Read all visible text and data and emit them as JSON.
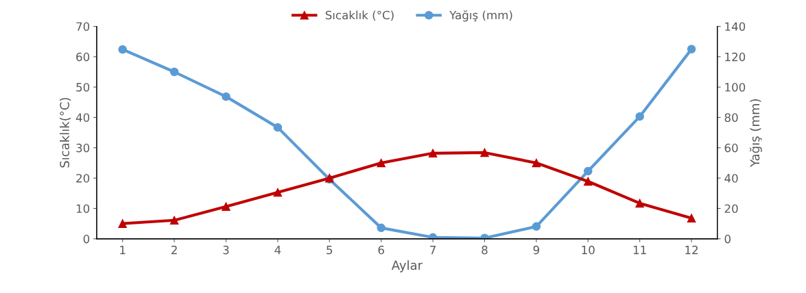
{
  "chart_data": {
    "type": "line",
    "xlabel": "Aylar",
    "ylabel": "Sıcaklık(°C)",
    "y2label": "Yağış (mm)",
    "categories": [
      "1",
      "2",
      "3",
      "4",
      "5",
      "6",
      "7",
      "8",
      "9",
      "10",
      "11",
      "12"
    ],
    "series": [
      {
        "name": "Sıcaklık (°C)",
        "color": "#c00000",
        "marker": "triangle",
        "values": [
          5,
          6.1,
          10.6,
          15.3,
          20,
          25,
          28.2,
          28.4,
          25,
          18.9,
          11.7,
          6.8
        ]
      },
      {
        "name": "Yağış (mm)",
        "color": "#5b9bd5",
        "marker": "circle",
        "axis": "y2",
        "values": [
          124.8,
          110,
          93.7,
          73.4,
          39.2,
          7.2,
          0.9,
          0.5,
          8.1,
          44.6,
          80.6,
          125
        ]
      }
    ],
    "ylim": [
      0,
      70
    ],
    "yticks": [
      0,
      10,
      20,
      30,
      40,
      50,
      60,
      70
    ],
    "y2lim": [
      0,
      140
    ],
    "y2ticks": [
      0,
      20,
      40,
      60,
      80,
      100,
      120,
      140
    ],
    "grid": false,
    "legend": "top",
    "line_style": "solid"
  }
}
